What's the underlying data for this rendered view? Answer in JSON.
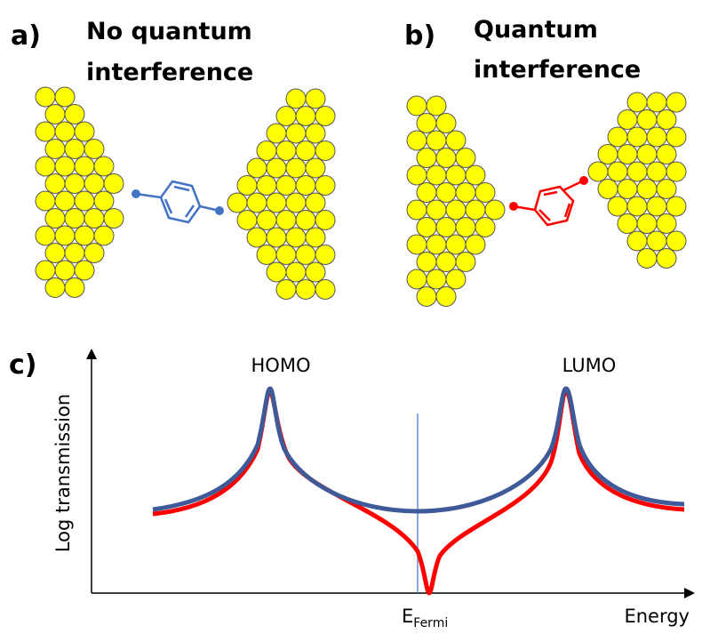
{
  "panels": [
    {
      "label": "a)",
      "title_lines": [
        "No quantum",
        "interference"
      ]
    },
    {
      "label": "b)",
      "title_lines": [
        "Quantum",
        "interference"
      ]
    }
  ],
  "plot": {
    "label": "c)",
    "y_axis_label": "Log transmission",
    "x_axis_label": "Energy",
    "peaks": [
      "HOMO",
      "LUMO"
    ],
    "fermi": {
      "symbol": "E",
      "subscript": "Fermi"
    }
  }
}
